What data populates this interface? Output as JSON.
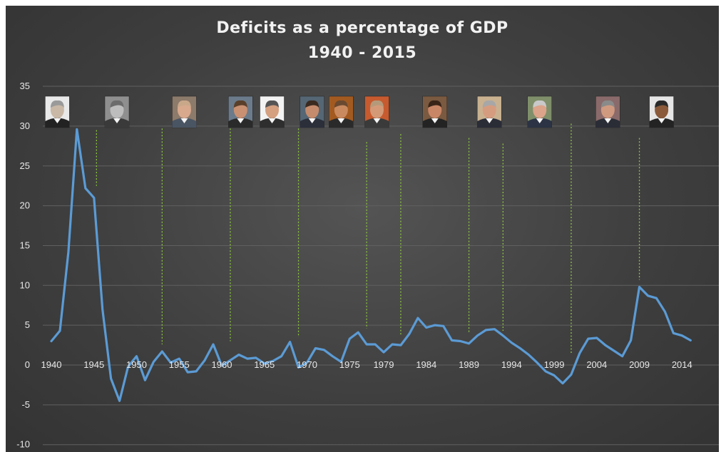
{
  "chart_data": {
    "type": "line",
    "title": "Deficits as a percentage of GDP",
    "subtitle": "1940 - 2015",
    "xlabel": "",
    "ylabel": "",
    "ylim": [
      -10,
      35
    ],
    "y_ticks": [
      35,
      30,
      25,
      20,
      15,
      10,
      5,
      0,
      -5,
      -10
    ],
    "x_tick_labels": [
      {
        "year": 1940,
        "label": "1940"
      },
      {
        "year": 1945,
        "label": "1945"
      },
      {
        "year": 1950,
        "label": "1950"
      },
      {
        "year": 1955,
        "label": "1955"
      },
      {
        "year": 1960,
        "label": "1960"
      },
      {
        "year": 1965,
        "label": "1965"
      },
      {
        "year": 1970,
        "label": "1970"
      },
      {
        "year": 1975,
        "label": "1975"
      },
      {
        "year": 1979,
        "label": "1979"
      },
      {
        "year": 1984,
        "label": "1984"
      },
      {
        "year": 1989,
        "label": "1989"
      },
      {
        "year": 1994,
        "label": "1994"
      },
      {
        "year": 1999,
        "label": "1999"
      },
      {
        "year": 2004,
        "label": "2004"
      },
      {
        "year": 2009,
        "label": "2009"
      },
      {
        "year": 2014,
        "label": "2014"
      }
    ],
    "grid": true,
    "line_color": "#5b9bd5",
    "separator_color": "#8dc63f",
    "series": [
      {
        "x": [
          1940,
          1941,
          1942,
          1943,
          1944,
          1945,
          1946,
          1947,
          1948,
          1949,
          1950,
          1951,
          1952,
          1953,
          1954,
          1955,
          1956,
          1957,
          1958,
          1959,
          1960,
          1961,
          1962,
          1963,
          1964,
          1965,
          1966,
          1967,
          1968,
          1969,
          1970,
          1971,
          1972,
          1973,
          1974,
          1975,
          1976,
          1977,
          1978,
          1979,
          1980,
          1981,
          1982,
          1983,
          1984,
          1985,
          1986,
          1987,
          1988,
          1989,
          1990,
          1991,
          1992,
          1993,
          1994,
          1995,
          1996,
          1997,
          1998,
          1999,
          2000,
          2001,
          2002,
          2003,
          2004,
          2005,
          2006,
          2007,
          2008,
          2009,
          2010,
          2011,
          2012,
          2013,
          2014,
          2015
        ],
        "values": [
          3.0,
          4.3,
          14.2,
          29.6,
          22.2,
          21.0,
          7.0,
          -1.7,
          -4.5,
          -0.2,
          1.1,
          -1.9,
          0.4,
          1.7,
          0.3,
          0.8,
          -0.9,
          -0.8,
          0.6,
          2.6,
          -0.1,
          0.6,
          1.3,
          0.8,
          0.9,
          0.2,
          0.5,
          1.1,
          2.9,
          -0.3,
          0.3,
          2.1,
          1.9,
          1.1,
          0.4,
          3.3,
          4.1,
          2.6,
          2.6,
          1.6,
          2.6,
          2.5,
          3.9,
          5.9,
          4.7,
          5.0,
          4.9,
          3.1,
          3.0,
          2.7,
          3.7,
          4.4,
          4.5,
          3.7,
          2.8,
          2.1,
          1.3,
          0.3,
          -0.8,
          -1.3,
          -2.3,
          -1.2,
          1.5,
          3.3,
          3.4,
          2.5,
          1.8,
          1.1,
          3.1,
          9.8,
          8.7,
          8.4,
          6.7,
          4.0,
          3.7,
          3.1
        ]
      }
    ],
    "term_separators": [
      {
        "year": 1945.3,
        "top": 29.5,
        "bottom": 22.5
      },
      {
        "year": 1953.0,
        "top": 29.7,
        "bottom": 2.6
      },
      {
        "year": 1961.0,
        "top": 29.7,
        "bottom": 3.0
      },
      {
        "year": 1969.0,
        "top": 29.7,
        "bottom": 3.5
      },
      {
        "year": 1977.0,
        "top": 28.0,
        "bottom": 4.6
      },
      {
        "year": 1981.0,
        "top": 29.0,
        "bottom": 3.8
      },
      {
        "year": 1989.0,
        "top": 28.5,
        "bottom": 4.0
      },
      {
        "year": 1993.0,
        "top": 27.8,
        "bottom": 4.3
      },
      {
        "year": 2001.0,
        "top": 30.3,
        "bottom": 1.4
      },
      {
        "year": 2009.0,
        "top": 28.5,
        "bottom": 10.7
      }
    ],
    "portraits": [
      {
        "name": "Franklin D. Roosevelt",
        "year": 1940.7,
        "skin": "#c9b8a6",
        "suit": "#222222",
        "bg": "#e9e9e9",
        "hair": "#9a9a9a"
      },
      {
        "name": "Harry S. Truman",
        "year": 1947.7,
        "skin": "#bdbdbd",
        "suit": "#3a3a3a",
        "bg": "#8f8f8f",
        "hair": "#6c6c6c"
      },
      {
        "name": "Dwight D. Eisenhower",
        "year": 1955.6,
        "skin": "#d8a98d",
        "suit": "#4a5563",
        "bg": "#8c7a6a",
        "hair": "#c9a88a"
      },
      {
        "name": "John F. Kennedy",
        "year": 1962.2,
        "skin": "#c99072",
        "suit": "#2a2a2a",
        "bg": "#6b7b8b",
        "hair": "#5a3f2a"
      },
      {
        "name": "Lyndon B. Johnson",
        "year": 1965.9,
        "skin": "#d4a080",
        "suit": "#2e2e2e",
        "bg": "#f3f3f3",
        "hair": "#555555"
      },
      {
        "name": "Richard Nixon",
        "year": 1970.6,
        "skin": "#c48b6c",
        "suit": "#2b2f3a",
        "bg": "#556674",
        "hair": "#3a2a20"
      },
      {
        "name": "Gerald Ford",
        "year": 1974.0,
        "skin": "#c98a60",
        "suit": "#2a2a2a",
        "bg": "#a35a20",
        "hair": "#6a4a30"
      },
      {
        "name": "Jimmy Carter",
        "year": 1978.2,
        "skin": "#d49a78",
        "suit": "#3a3a3a",
        "bg": "#c75b2f",
        "hair": "#b59a7a"
      },
      {
        "name": "Ronald Reagan",
        "year": 1985.0,
        "skin": "#c98666",
        "suit": "#232323",
        "bg": "#7a5a40",
        "hair": "#3a2418"
      },
      {
        "name": "George H. W. Bush",
        "year": 1991.4,
        "skin": "#d69c80",
        "suit": "#2a2d36",
        "bg": "#c9b190",
        "hair": "#a7a7a7"
      },
      {
        "name": "Bill Clinton",
        "year": 1997.3,
        "skin": "#dca48a",
        "suit": "#2b3344",
        "bg": "#7f8f6a",
        "hair": "#c9c9c9"
      },
      {
        "name": "George W. Bush",
        "year": 2005.3,
        "skin": "#d09a80",
        "suit": "#2a2d36",
        "bg": "#8a6a6a",
        "hair": "#8a8a8a"
      },
      {
        "name": "Barack Obama",
        "year": 2011.6,
        "skin": "#8a5a3a",
        "suit": "#232323",
        "bg": "#e6e6e6",
        "hair": "#2a2a2a"
      }
    ]
  }
}
